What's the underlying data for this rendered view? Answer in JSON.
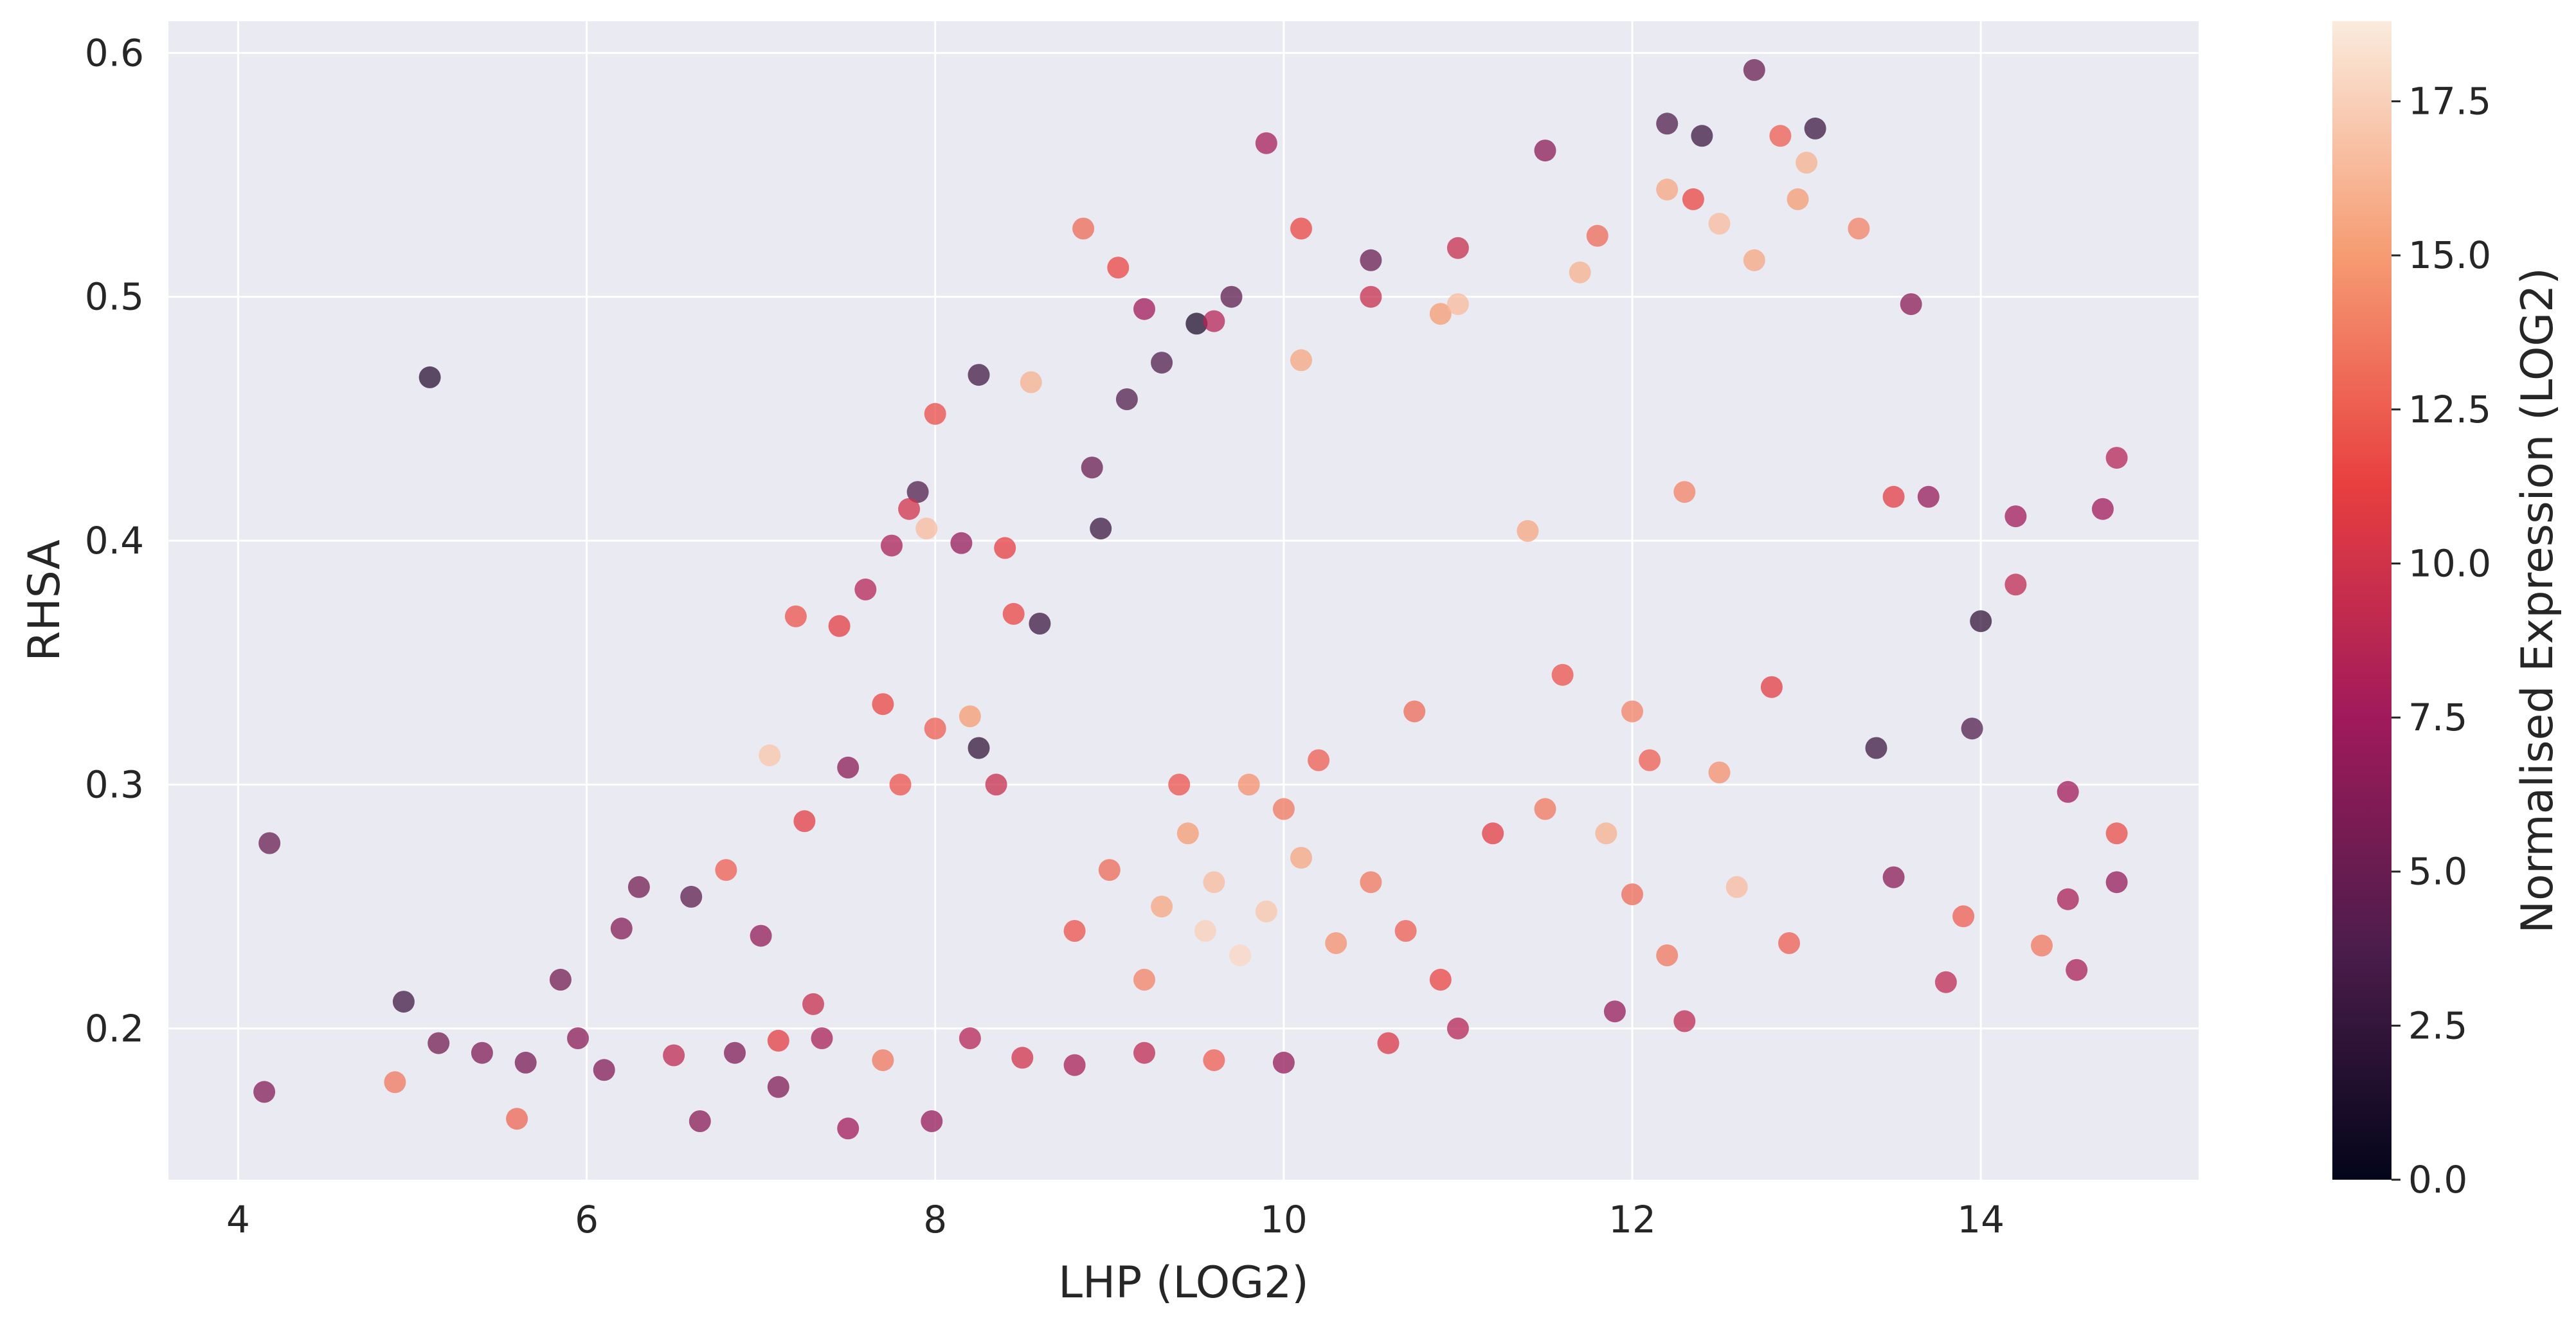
{
  "chart_data": {
    "type": "scatter",
    "title": "",
    "xlabel": "LHP (LOG2)",
    "ylabel": "RHSA",
    "xlim": [
      3.6,
      15.25
    ],
    "ylim": [
      0.138,
      0.613
    ],
    "x_ticks": [
      4,
      6,
      8,
      10,
      12,
      14
    ],
    "y_ticks": [
      0.2,
      0.3,
      0.4,
      0.5,
      0.6
    ],
    "x_tick_labels": [
      "4",
      "6",
      "8",
      "10",
      "12",
      "14"
    ],
    "y_tick_labels": [
      "0.2",
      "0.3",
      "0.4",
      "0.5",
      "0.6"
    ],
    "grid": true,
    "background_color": "#eaeaf2",
    "marker_alpha": 0.75,
    "colorbar": {
      "label": "Normalised Expression (LOG2)",
      "range": [
        0.0,
        18.8
      ],
      "ticks": [
        0.0,
        2.5,
        5.0,
        7.5,
        10.0,
        12.5,
        15.0,
        17.5
      ],
      "tick_labels": [
        "0.0",
        "2.5",
        "5.0",
        "7.5",
        "10.0",
        "12.5",
        "15.0",
        "17.5"
      ],
      "colormap": "rocket",
      "colormap_stops": [
        "#03051a",
        "#4c1d4b",
        "#a11a5b",
        "#e83f3f",
        "#f69c73",
        "#faebdd"
      ]
    },
    "points": [
      [
        4.15,
        0.174,
        6.2
      ],
      [
        4.18,
        0.276,
        5.0
      ],
      [
        4.9,
        0.178,
        13.5
      ],
      [
        4.95,
        0.211,
        3.2
      ],
      [
        5.1,
        0.467,
        2.0
      ],
      [
        5.15,
        0.194,
        5.5
      ],
      [
        5.4,
        0.19,
        6.0
      ],
      [
        5.6,
        0.163,
        12.8
      ],
      [
        5.65,
        0.186,
        5.8
      ],
      [
        5.85,
        0.22,
        5.4
      ],
      [
        5.95,
        0.196,
        6.5
      ],
      [
        6.1,
        0.183,
        6.1
      ],
      [
        6.2,
        0.241,
        6.2
      ],
      [
        6.3,
        0.258,
        5.5
      ],
      [
        6.5,
        0.189,
        9.0
      ],
      [
        6.6,
        0.254,
        4.5
      ],
      [
        6.65,
        0.162,
        6.5
      ],
      [
        6.85,
        0.19,
        6.0
      ],
      [
        7.0,
        0.238,
        6.8
      ],
      [
        7.05,
        0.312,
        17.0
      ],
      [
        7.1,
        0.176,
        6.0
      ],
      [
        7.2,
        0.369,
        12.0
      ],
      [
        7.35,
        0.196,
        8.0
      ],
      [
        7.45,
        0.365,
        11.0
      ],
      [
        7.5,
        0.159,
        7.5
      ],
      [
        7.6,
        0.38,
        8.5
      ],
      [
        7.7,
        0.333,
        11.5
      ],
      [
        7.75,
        0.398,
        8.0
      ],
      [
        7.85,
        0.413,
        10.0
      ],
      [
        7.95,
        0.405,
        16.5
      ],
      [
        7.98,
        0.162,
        7.0
      ],
      [
        7.9,
        0.42,
        4.0
      ],
      [
        8.0,
        0.452,
        11.8
      ],
      [
        8.15,
        0.399,
        7.0
      ],
      [
        8.25,
        0.468,
        3.2
      ],
      [
        8.4,
        0.397,
        11.2
      ],
      [
        8.55,
        0.465,
        16.0
      ],
      [
        8.6,
        0.366,
        3.0
      ],
      [
        8.85,
        0.528,
        13.0
      ],
      [
        8.9,
        0.43,
        5.0
      ],
      [
        8.95,
        0.405,
        3.0
      ],
      [
        9.05,
        0.512,
        11.5
      ],
      [
        9.1,
        0.458,
        4.0
      ],
      [
        9.2,
        0.495,
        7.5
      ],
      [
        9.3,
        0.473,
        4.0
      ],
      [
        9.5,
        0.489,
        1.5
      ],
      [
        9.6,
        0.49,
        8.5
      ],
      [
        9.7,
        0.5,
        4.5
      ],
      [
        9.9,
        0.563,
        7.8
      ],
      [
        10.1,
        0.528,
        11.5
      ],
      [
        10.5,
        0.515,
        5.0
      ],
      [
        11.0,
        0.52,
        9.5
      ],
      [
        11.5,
        0.56,
        6.5
      ],
      [
        12.2,
        0.571,
        4.0
      ],
      [
        12.4,
        0.566,
        3.0
      ],
      [
        12.7,
        0.593,
        5.0
      ],
      [
        12.85,
        0.566,
        12.5
      ],
      [
        13.05,
        0.569,
        3.0
      ],
      [
        13.3,
        0.528,
        14.0
      ],
      [
        13.6,
        0.497,
        6.5
      ],
      [
        13.7,
        0.418,
        7.0
      ],
      [
        13.5,
        0.418,
        11.0
      ],
      [
        13.95,
        0.323,
        4.0
      ],
      [
        14.0,
        0.367,
        2.5
      ],
      [
        14.2,
        0.41,
        7.5
      ],
      [
        14.2,
        0.382,
        9.0
      ],
      [
        14.5,
        0.297,
        7.5
      ],
      [
        14.55,
        0.224,
        8.0
      ],
      [
        14.7,
        0.413,
        7.5
      ],
      [
        14.78,
        0.434,
        8.5
      ],
      [
        14.78,
        0.28,
        11.8
      ],
      [
        14.78,
        0.26,
        7.0
      ],
      [
        14.35,
        0.234,
        13.5
      ],
      [
        14.5,
        0.253,
        8.0
      ],
      [
        13.9,
        0.246,
        12.5
      ],
      [
        13.8,
        0.219,
        9.0
      ],
      [
        13.5,
        0.262,
        6.5
      ],
      [
        13.4,
        0.315,
        3.0
      ],
      [
        12.3,
        0.203,
        9.0
      ],
      [
        11.9,
        0.207,
        7.0
      ],
      [
        11.0,
        0.2,
        8.5
      ],
      [
        10.6,
        0.194,
        10.5
      ],
      [
        10.0,
        0.186,
        7.0
      ],
      [
        9.6,
        0.187,
        12.5
      ],
      [
        9.2,
        0.19,
        9.0
      ],
      [
        8.8,
        0.185,
        8.0
      ],
      [
        8.5,
        0.188,
        10.0
      ],
      [
        8.2,
        0.196,
        8.5
      ],
      [
        7.7,
        0.187,
        13.5
      ],
      [
        7.3,
        0.21,
        9.5
      ],
      [
        7.1,
        0.195,
        11.0
      ],
      [
        6.8,
        0.265,
        12.5
      ],
      [
        7.25,
        0.285,
        11.0
      ],
      [
        7.5,
        0.307,
        6.5
      ],
      [
        7.8,
        0.3,
        12.0
      ],
      [
        8.0,
        0.323,
        12.5
      ],
      [
        8.2,
        0.328,
        15.0
      ],
      [
        8.35,
        0.3,
        9.5
      ],
      [
        8.45,
        0.37,
        11.5
      ],
      [
        8.25,
        0.315,
        2.5
      ],
      [
        9.55,
        0.24,
        17.5
      ],
      [
        9.75,
        0.23,
        17.8
      ],
      [
        9.6,
        0.26,
        16.5
      ],
      [
        9.9,
        0.248,
        17.0
      ],
      [
        10.1,
        0.27,
        15.5
      ],
      [
        9.3,
        0.25,
        15.5
      ],
      [
        9.2,
        0.22,
        14.0
      ],
      [
        9.45,
        0.28,
        15.0
      ],
      [
        10.3,
        0.235,
        14.5
      ],
      [
        10.5,
        0.26,
        13.5
      ],
      [
        10.7,
        0.24,
        12.5
      ],
      [
        10.9,
        0.22,
        11.5
      ],
      [
        11.2,
        0.28,
        11.0
      ],
      [
        9.0,
        0.265,
        13.0
      ],
      [
        8.8,
        0.24,
        12.0
      ],
      [
        9.8,
        0.3,
        14.5
      ],
      [
        10.0,
        0.29,
        13.5
      ],
      [
        10.2,
        0.31,
        12.5
      ],
      [
        9.4,
        0.3,
        12.0
      ],
      [
        11.5,
        0.29,
        13.5
      ],
      [
        11.6,
        0.345,
        12.0
      ],
      [
        12.0,
        0.33,
        14.0
      ],
      [
        12.1,
        0.31,
        12.5
      ],
      [
        12.5,
        0.305,
        14.5
      ],
      [
        12.8,
        0.34,
        11.0
      ],
      [
        12.35,
        0.54,
        11.5
      ],
      [
        12.2,
        0.544,
        15.5
      ],
      [
        11.7,
        0.51,
        16.0
      ],
      [
        11.8,
        0.525,
        13.0
      ],
      [
        12.5,
        0.53,
        16.5
      ],
      [
        12.7,
        0.515,
        15.5
      ],
      [
        12.95,
        0.54,
        15.0
      ],
      [
        13.0,
        0.555,
        16.0
      ],
      [
        11.0,
        0.497,
        16.5
      ],
      [
        10.9,
        0.493,
        15.0
      ],
      [
        10.5,
        0.5,
        9.5
      ],
      [
        10.1,
        0.474,
        15.5
      ],
      [
        11.4,
        0.404,
        15.5
      ],
      [
        12.3,
        0.42,
        14.0
      ],
      [
        11.85,
        0.28,
        16.0
      ],
      [
        12.0,
        0.255,
        13.0
      ],
      [
        12.6,
        0.258,
        16.5
      ],
      [
        12.2,
        0.23,
        13.5
      ],
      [
        12.9,
        0.235,
        12.5
      ],
      [
        10.75,
        0.33,
        13.0
      ]
    ]
  }
}
